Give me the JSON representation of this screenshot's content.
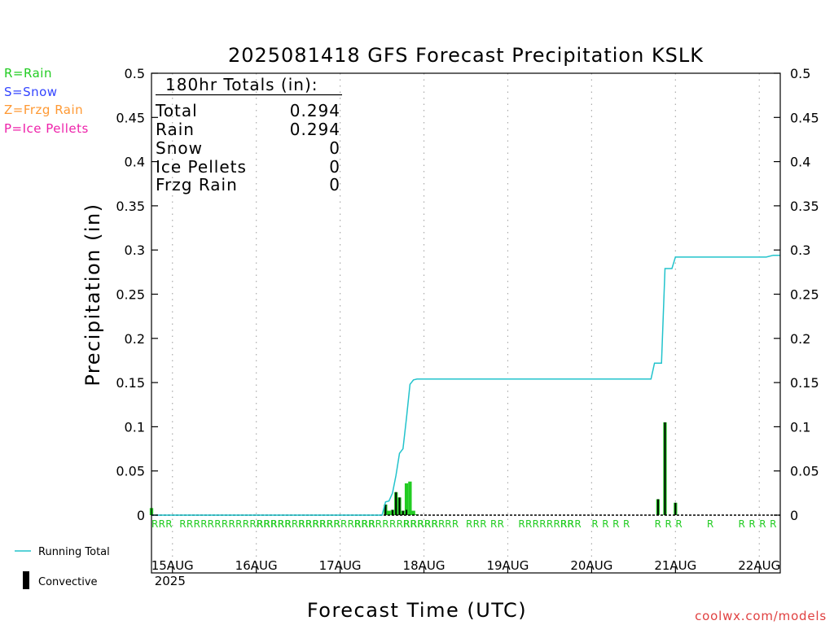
{
  "title": "2025081418 GFS Forecast Precipitation KSLK",
  "source": "coolwx.com/models",
  "ptype_key": [
    {
      "label": "R=Rain",
      "color": "#22cc22"
    },
    {
      "label": "S=Snow",
      "color": "#3344ff"
    },
    {
      "label": "Z=Frzg Rain",
      "color": "#ff9933"
    },
    {
      "label": "P=Ice Pellets",
      "color": "#ee22aa"
    }
  ],
  "totals": {
    "header": "180hr Totals (in):",
    "rows": [
      {
        "label": "Total",
        "value": "0.294"
      },
      {
        "label": "Rain",
        "value": "0.294"
      },
      {
        "label": "Snow",
        "value": "0"
      },
      {
        "label": "Ice Pellets",
        "value": "0"
      },
      {
        "label": "Frzg Rain",
        "value": "0"
      }
    ]
  },
  "legend": {
    "running_total": "Running Total",
    "convective": "Convective"
  },
  "colors": {
    "running_total": "#22c3cc",
    "precip_bar": "#22cc22",
    "convective_bar": "#000000",
    "rain_marker": "#22cc22",
    "grid": "#aaaaaa"
  },
  "chart_data": {
    "type": "bar",
    "title": "2025081418 GFS Forecast Precipitation KSLK",
    "xlabel": "Forecast Time (UTC)",
    "ylabel": "Precipitation (in)",
    "ylim": [
      0,
      0.5
    ],
    "yticks": [
      "0",
      "0.05",
      "0.1",
      "0.15",
      "0.2",
      "0.25",
      "0.3",
      "0.35",
      "0.4",
      "0.45",
      "0.5"
    ],
    "xlim_hours": [
      0,
      180
    ],
    "xticks": [
      {
        "label": "15AUG",
        "sub": "2025",
        "hour": 6
      },
      {
        "label": "16AUG",
        "sub": "",
        "hour": 30
      },
      {
        "label": "17AUG",
        "sub": "",
        "hour": 54
      },
      {
        "label": "18AUG",
        "sub": "",
        "hour": 78
      },
      {
        "label": "19AUG",
        "sub": "",
        "hour": 102
      },
      {
        "label": "20AUG",
        "sub": "",
        "hour": 126
      },
      {
        "label": "21AUG",
        "sub": "",
        "hour": 150
      },
      {
        "label": "22AUG",
        "sub": "",
        "hour": 174
      }
    ],
    "running_total": {
      "hour": [
        0,
        66,
        67,
        68,
        69,
        70,
        71,
        72,
        73,
        74,
        75,
        76,
        143,
        144,
        146,
        147,
        149,
        150,
        160,
        168,
        176,
        178,
        180
      ],
      "value": [
        0,
        0,
        0.015,
        0.016,
        0.025,
        0.045,
        0.07,
        0.075,
        0.11,
        0.148,
        0.153,
        0.154,
        0.154,
        0.172,
        0.172,
        0.279,
        0.279,
        0.292,
        0.292,
        0.292,
        0.292,
        0.294,
        0.294
      ]
    },
    "precip_bars": {
      "hour": [
        0,
        67,
        68,
        69,
        70,
        71,
        72,
        73,
        74,
        75,
        76,
        145,
        147,
        150
      ],
      "value": [
        0.008,
        0.012,
        0.005,
        0.006,
        0.026,
        0.02,
        0.005,
        0.036,
        0.038,
        0.005,
        0.001,
        0.018,
        0.105,
        0.014
      ]
    },
    "convective_bars": {
      "hour": [
        67,
        69,
        70,
        71,
        72,
        73,
        145,
        147,
        150
      ],
      "value": [
        0.012,
        0.006,
        0.026,
        0.02,
        0.005,
        0.006,
        0.018,
        0.105,
        0.014
      ]
    },
    "rain_markers": {
      "text": [
        "RRR",
        "RRRR",
        "RRRRRRRRRRRR",
        "RRRRRRRRRRRR",
        "RRRRRRRRRRR",
        "RRRRRRRRRRRR",
        "RRRRRR",
        "RR",
        "RRR",
        "RR",
        "RRRRRRRRR",
        "RR",
        "R",
        "R",
        "R",
        "R",
        "R",
        "R",
        "R",
        "R",
        "R",
        "R",
        "R",
        "R"
      ],
      "hour": [
        0,
        8,
        16,
        30,
        42,
        58,
        72,
        84,
        90,
        97,
        105,
        117,
        126,
        129,
        132,
        135,
        144,
        147,
        150,
        159,
        168,
        171,
        174,
        177
      ]
    }
  }
}
